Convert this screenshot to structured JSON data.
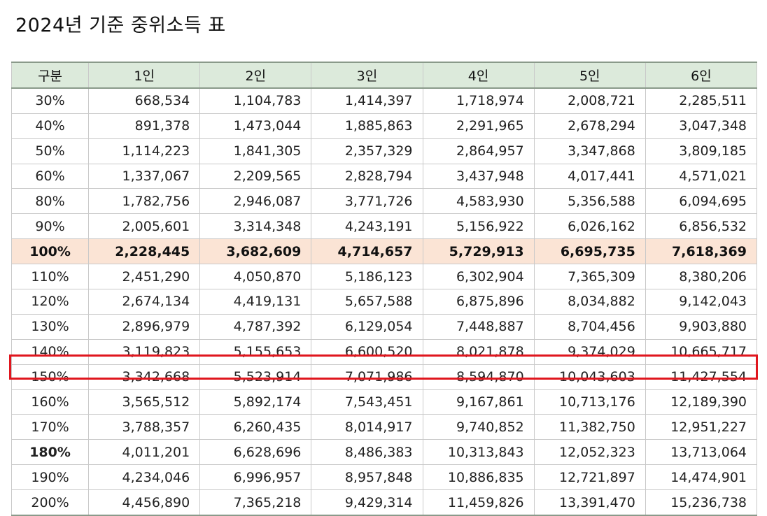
{
  "title": "2024년 기준 중위소득 표",
  "table": {
    "headers": [
      "구분",
      "1인",
      "2인",
      "3인",
      "4인",
      "5인",
      "6인"
    ],
    "rows": [
      {
        "label": "30%",
        "values": [
          "668,534",
          "1,104,783",
          "1,414,397",
          "1,718,974",
          "2,008,721",
          "2,285,511"
        ]
      },
      {
        "label": "40%",
        "values": [
          "891,378",
          "1,473,044",
          "1,885,863",
          "2,291,965",
          "2,678,294",
          "3,047,348"
        ]
      },
      {
        "label": "50%",
        "values": [
          "1,114,223",
          "1,841,305",
          "2,357,329",
          "2,864,957",
          "3,347,868",
          "3,809,185"
        ]
      },
      {
        "label": "60%",
        "values": [
          "1,337,067",
          "2,209,565",
          "2,828,794",
          "3,437,948",
          "4,017,441",
          "4,571,021"
        ]
      },
      {
        "label": "80%",
        "values": [
          "1,782,756",
          "2,946,087",
          "3,771,726",
          "4,583,930",
          "5,356,588",
          "6,094,695"
        ]
      },
      {
        "label": "90%",
        "values": [
          "2,005,601",
          "3,314,348",
          "4,243,191",
          "5,156,922",
          "6,026,162",
          "6,856,532"
        ]
      },
      {
        "label": "100%",
        "values": [
          "2,228,445",
          "3,682,609",
          "4,714,657",
          "5,729,913",
          "6,695,735",
          "7,618,369"
        ]
      },
      {
        "label": "110%",
        "values": [
          "2,451,290",
          "4,050,870",
          "5,186,123",
          "6,302,904",
          "7,365,309",
          "8,380,206"
        ]
      },
      {
        "label": "120%",
        "values": [
          "2,674,134",
          "4,419,131",
          "5,657,588",
          "6,875,896",
          "8,034,882",
          "9,142,043"
        ]
      },
      {
        "label": "130%",
        "values": [
          "2,896,979",
          "4,787,392",
          "6,129,054",
          "7,448,887",
          "8,704,456",
          "9,903,880"
        ]
      },
      {
        "label": "140%",
        "values": [
          "3,119,823",
          "5,155,653",
          "6,600,520",
          "8,021,878",
          "9,374,029",
          "10,665,717"
        ]
      },
      {
        "label": "150%",
        "values": [
          "3,342,668",
          "5,523,914",
          "7,071,986",
          "8,594,870",
          "10,043,603",
          "11,427,554"
        ]
      },
      {
        "label": "160%",
        "values": [
          "3,565,512",
          "5,892,174",
          "7,543,451",
          "9,167,861",
          "10,713,176",
          "12,189,390"
        ]
      },
      {
        "label": "170%",
        "values": [
          "3,788,357",
          "6,260,435",
          "8,014,917",
          "9,740,852",
          "11,382,750",
          "12,951,227"
        ]
      },
      {
        "label": "180%",
        "values": [
          "4,011,201",
          "6,628,696",
          "8,486,383",
          "10,313,843",
          "12,052,323",
          "13,713,064"
        ]
      },
      {
        "label": "190%",
        "values": [
          "4,234,046",
          "6,996,957",
          "8,957,848",
          "10,886,835",
          "12,721,897",
          "14,474,901"
        ]
      },
      {
        "label": "200%",
        "values": [
          "4,456,890",
          "7,365,218",
          "9,429,314",
          "11,459,826",
          "13,391,470",
          "15,236,738"
        ]
      }
    ]
  },
  "colors": {
    "header_bg": "#dceadb",
    "base_row_bg": "#fbe4d5",
    "highlight_border": "#e0161e"
  }
}
